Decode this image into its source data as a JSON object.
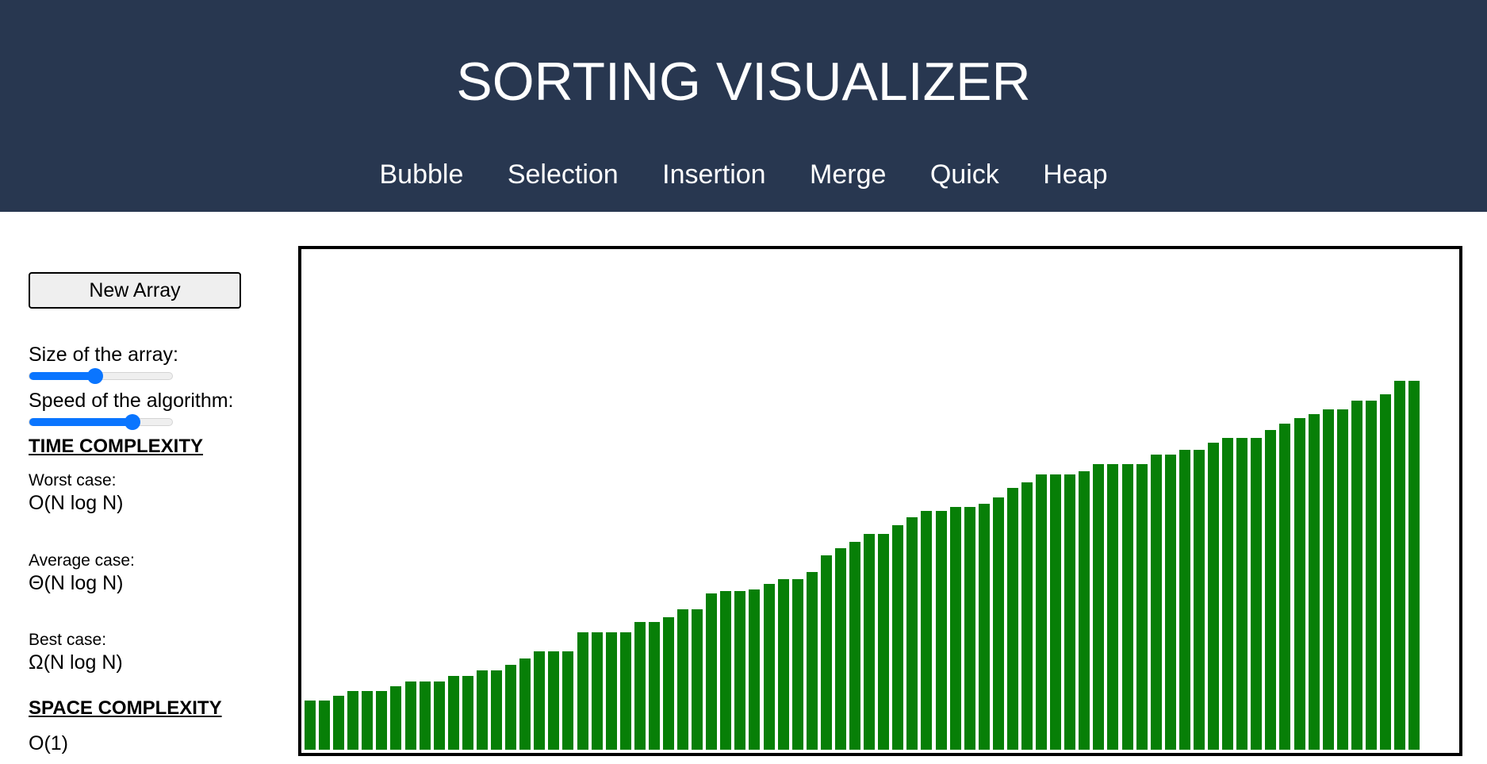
{
  "header": {
    "title": "SORTING VISUALIZER",
    "nav": [
      "Bubble",
      "Selection",
      "Insertion",
      "Merge",
      "Quick",
      "Heap"
    ]
  },
  "controls": {
    "new_array_label": "New Array",
    "size_label": "Size of the array:",
    "size_value": 0.46,
    "speed_label": "Speed of the algorithm:",
    "speed_value": 0.72
  },
  "complexity": {
    "time_heading": "TIME COMPLEXITY",
    "worst_label": "Worst case:",
    "worst_value": "O(N log N)",
    "average_label": "Average case:",
    "average_value": "Θ(N log N)",
    "best_label": "Best case:",
    "best_value": "Ω(N log N)",
    "space_heading": "SPACE COMPLEXITY",
    "space_value": "O(1)"
  },
  "colors": {
    "header_bg": "#283750",
    "bar": "#077f07",
    "accent": "#0a75ff"
  },
  "array": {
    "state": "sorted",
    "values": [
      62,
      62,
      68,
      74,
      74,
      74,
      80,
      86,
      86,
      86,
      93,
      93,
      100,
      100,
      107,
      115,
      124,
      124,
      124,
      148,
      148,
      148,
      148,
      161,
      161,
      167,
      177,
      177,
      197,
      200,
      200,
      202,
      209,
      215,
      215,
      224,
      245,
      254,
      262,
      272,
      272,
      283,
      293,
      301,
      301,
      306,
      306,
      310,
      318,
      330,
      337,
      347,
      347,
      347,
      351,
      360,
      360,
      360,
      360,
      372,
      372,
      378,
      378,
      387,
      393,
      393,
      393,
      403,
      411,
      418,
      423,
      429,
      429,
      440,
      440,
      448,
      465,
      465
    ]
  }
}
